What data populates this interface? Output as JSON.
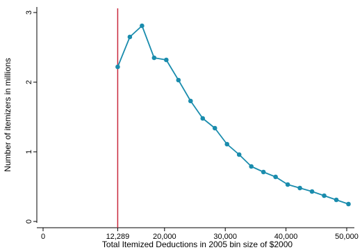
{
  "chart_data": {
    "type": "line",
    "xlabel": "Total Itemized Deductions in 2005 bin size of $2000",
    "ylabel": "Number of itemizers in millions",
    "xlim": [
      0,
      51000
    ],
    "ylim": [
      0,
      3
    ],
    "x_ticks": [
      {
        "value": 0,
        "label": "0"
      },
      {
        "value": 12289,
        "label": "12,289"
      },
      {
        "value": 20000,
        "label": "20,000"
      },
      {
        "value": 30000,
        "label": "30,000"
      },
      {
        "value": 40000,
        "label": "40,000"
      },
      {
        "value": 50000,
        "label": "50,000"
      }
    ],
    "y_ticks": [
      {
        "value": 0,
        "label": "0"
      },
      {
        "value": 1,
        "label": "1"
      },
      {
        "value": 2,
        "label": "2"
      },
      {
        "value": 3,
        "label": "3"
      }
    ],
    "reference_line": {
      "axis": "x",
      "value": 12289,
      "color": "#c8283c"
    },
    "grid": false,
    "series": [
      {
        "color": "#1a8cad",
        "x": [
          12289,
          14289,
          16289,
          18289,
          20289,
          22289,
          24289,
          26289,
          28289,
          30289,
          32289,
          34289,
          36289,
          38289,
          40289,
          42289,
          44289,
          46289,
          48289,
          50289
        ],
        "y": [
          2.22,
          2.65,
          2.81,
          2.35,
          2.32,
          2.03,
          1.73,
          1.48,
          1.34,
          1.11,
          0.96,
          0.79,
          0.71,
          0.64,
          0.53,
          0.48,
          0.43,
          0.37,
          0.31,
          0.25
        ]
      }
    ]
  }
}
